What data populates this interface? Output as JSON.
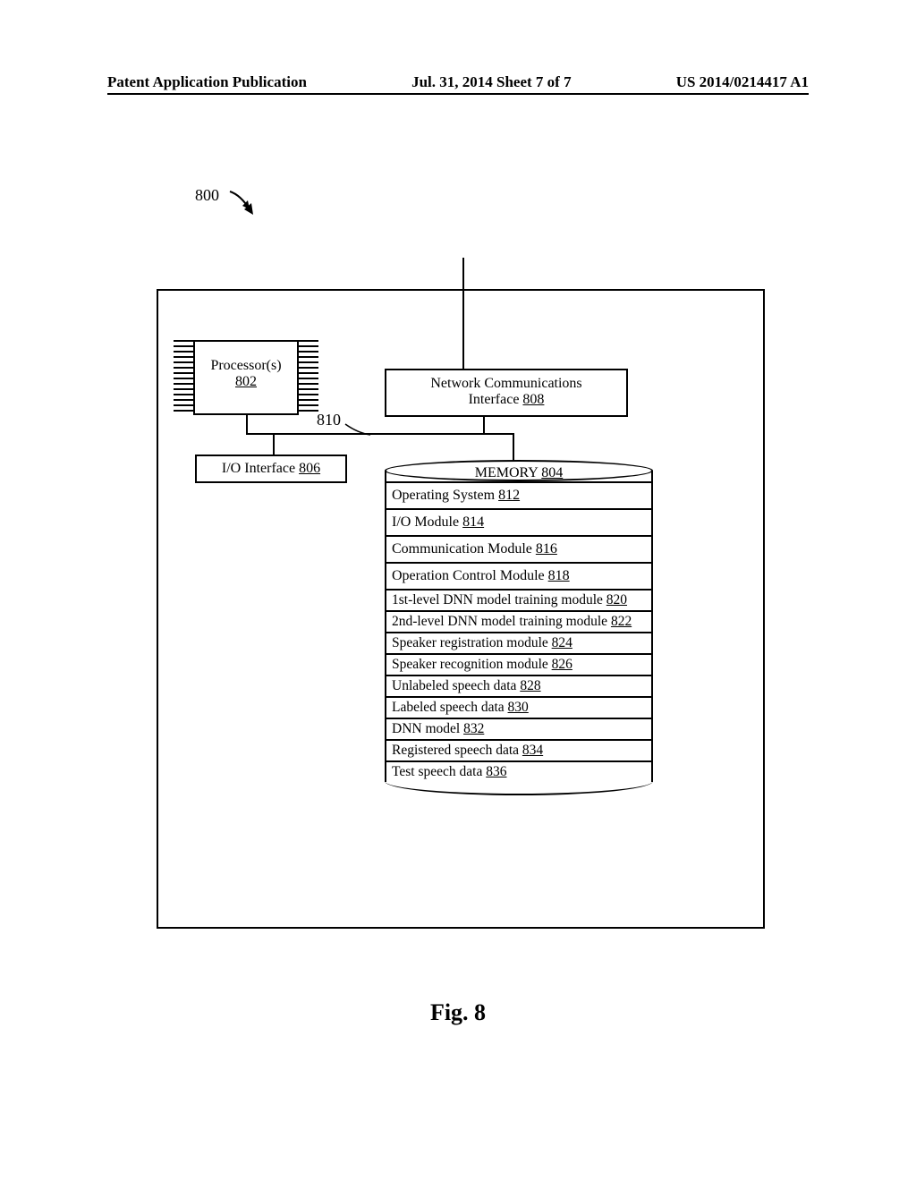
{
  "header": {
    "left": "Patent Application Publication",
    "center": "Jul. 31, 2014  Sheet 7 of 7",
    "right": "US 2014/0214417 A1"
  },
  "refs": {
    "system": "800",
    "bus": "810"
  },
  "processor": {
    "label": "Processor(s)",
    "num": "802"
  },
  "io_interface": {
    "label": "I/O Interface",
    "num": "806"
  },
  "network": {
    "line1": "Network Communications",
    "line2": "Interface",
    "num": "808"
  },
  "memory": {
    "title": "MEMORY",
    "title_num": "804",
    "rows": [
      {
        "label": "Operating System",
        "num": "812",
        "tight": false
      },
      {
        "label": "I/O Module",
        "num": "814",
        "tight": false
      },
      {
        "label": "Communication Module",
        "num": "816",
        "tight": false
      },
      {
        "label": "Operation Control Module",
        "num": "818",
        "tight": false
      },
      {
        "label": "1st-level DNN model training module",
        "num": "820",
        "tight": true
      },
      {
        "label": "2nd-level DNN model training module",
        "num": "822",
        "tight": true
      },
      {
        "label": "Speaker registration module",
        "num": "824",
        "tight": true
      },
      {
        "label": "Speaker recognition module",
        "num": "826",
        "tight": true
      },
      {
        "label": "Unlabeled speech data",
        "num": "828",
        "tight": true
      },
      {
        "label": "Labeled speech data",
        "num": "830",
        "tight": true
      },
      {
        "label": "DNN model",
        "num": "832",
        "tight": true
      },
      {
        "label": "Registered speech data",
        "num": "834",
        "tight": true
      },
      {
        "label": "Test speech data",
        "num": "836",
        "tight": true
      }
    ]
  },
  "caption": "Fig. 8",
  "colors": {
    "stroke": "#000000",
    "bg": "#ffffff"
  }
}
